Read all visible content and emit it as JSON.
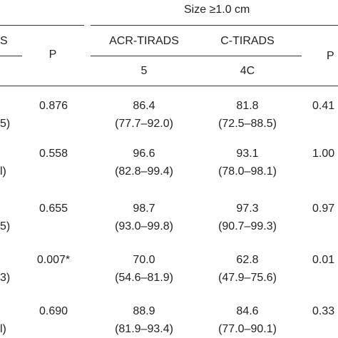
{
  "header": {
    "group_label": "Size ≥1.0 cm",
    "left_cut_label": "S",
    "p_label": "P",
    "acr_label": "ACR-TIRADS",
    "c_label": "C-TIRADS",
    "p_label_right": "P",
    "acr_cutoff": "5",
    "c_cutoff": "4C"
  },
  "rows": [
    {
      "left_ci_tail": "5)",
      "p_left": "0.876",
      "acr_val": "86.4",
      "acr_ci": "(77.7–92.0)",
      "c_val": "81.8",
      "c_ci": "(72.5–88.5)",
      "p_right": "0.41"
    },
    {
      "left_ci_tail": "l)",
      "p_left": "0.558",
      "acr_val": "96.6",
      "acr_ci": "(82.8–99.4)",
      "c_val": "93.1",
      "c_ci": "(78.0–98.1)",
      "p_right": "1.00"
    },
    {
      "left_ci_tail": "5)",
      "p_left": "0.655",
      "acr_val": "98.7",
      "acr_ci": "(93.0–99.8)",
      "c_val": "97.3",
      "c_ci": "(90.7–99.3)",
      "p_right": "0.97"
    },
    {
      "left_ci_tail": "3)",
      "p_left": "0.007*",
      "acr_val": "70.0",
      "acr_ci": "(54.6–81.9)",
      "c_val": "62.8",
      "c_ci": "(47.9–75.6)",
      "p_right": "0.01"
    },
    {
      "left_ci_tail": "l)",
      "p_left": "0.690",
      "acr_val": "88.9",
      "acr_ci": "(81.9–93.4)",
      "c_val": "84.6",
      "c_ci": "(77.0–90.1)",
      "p_right": "0.33"
    }
  ]
}
